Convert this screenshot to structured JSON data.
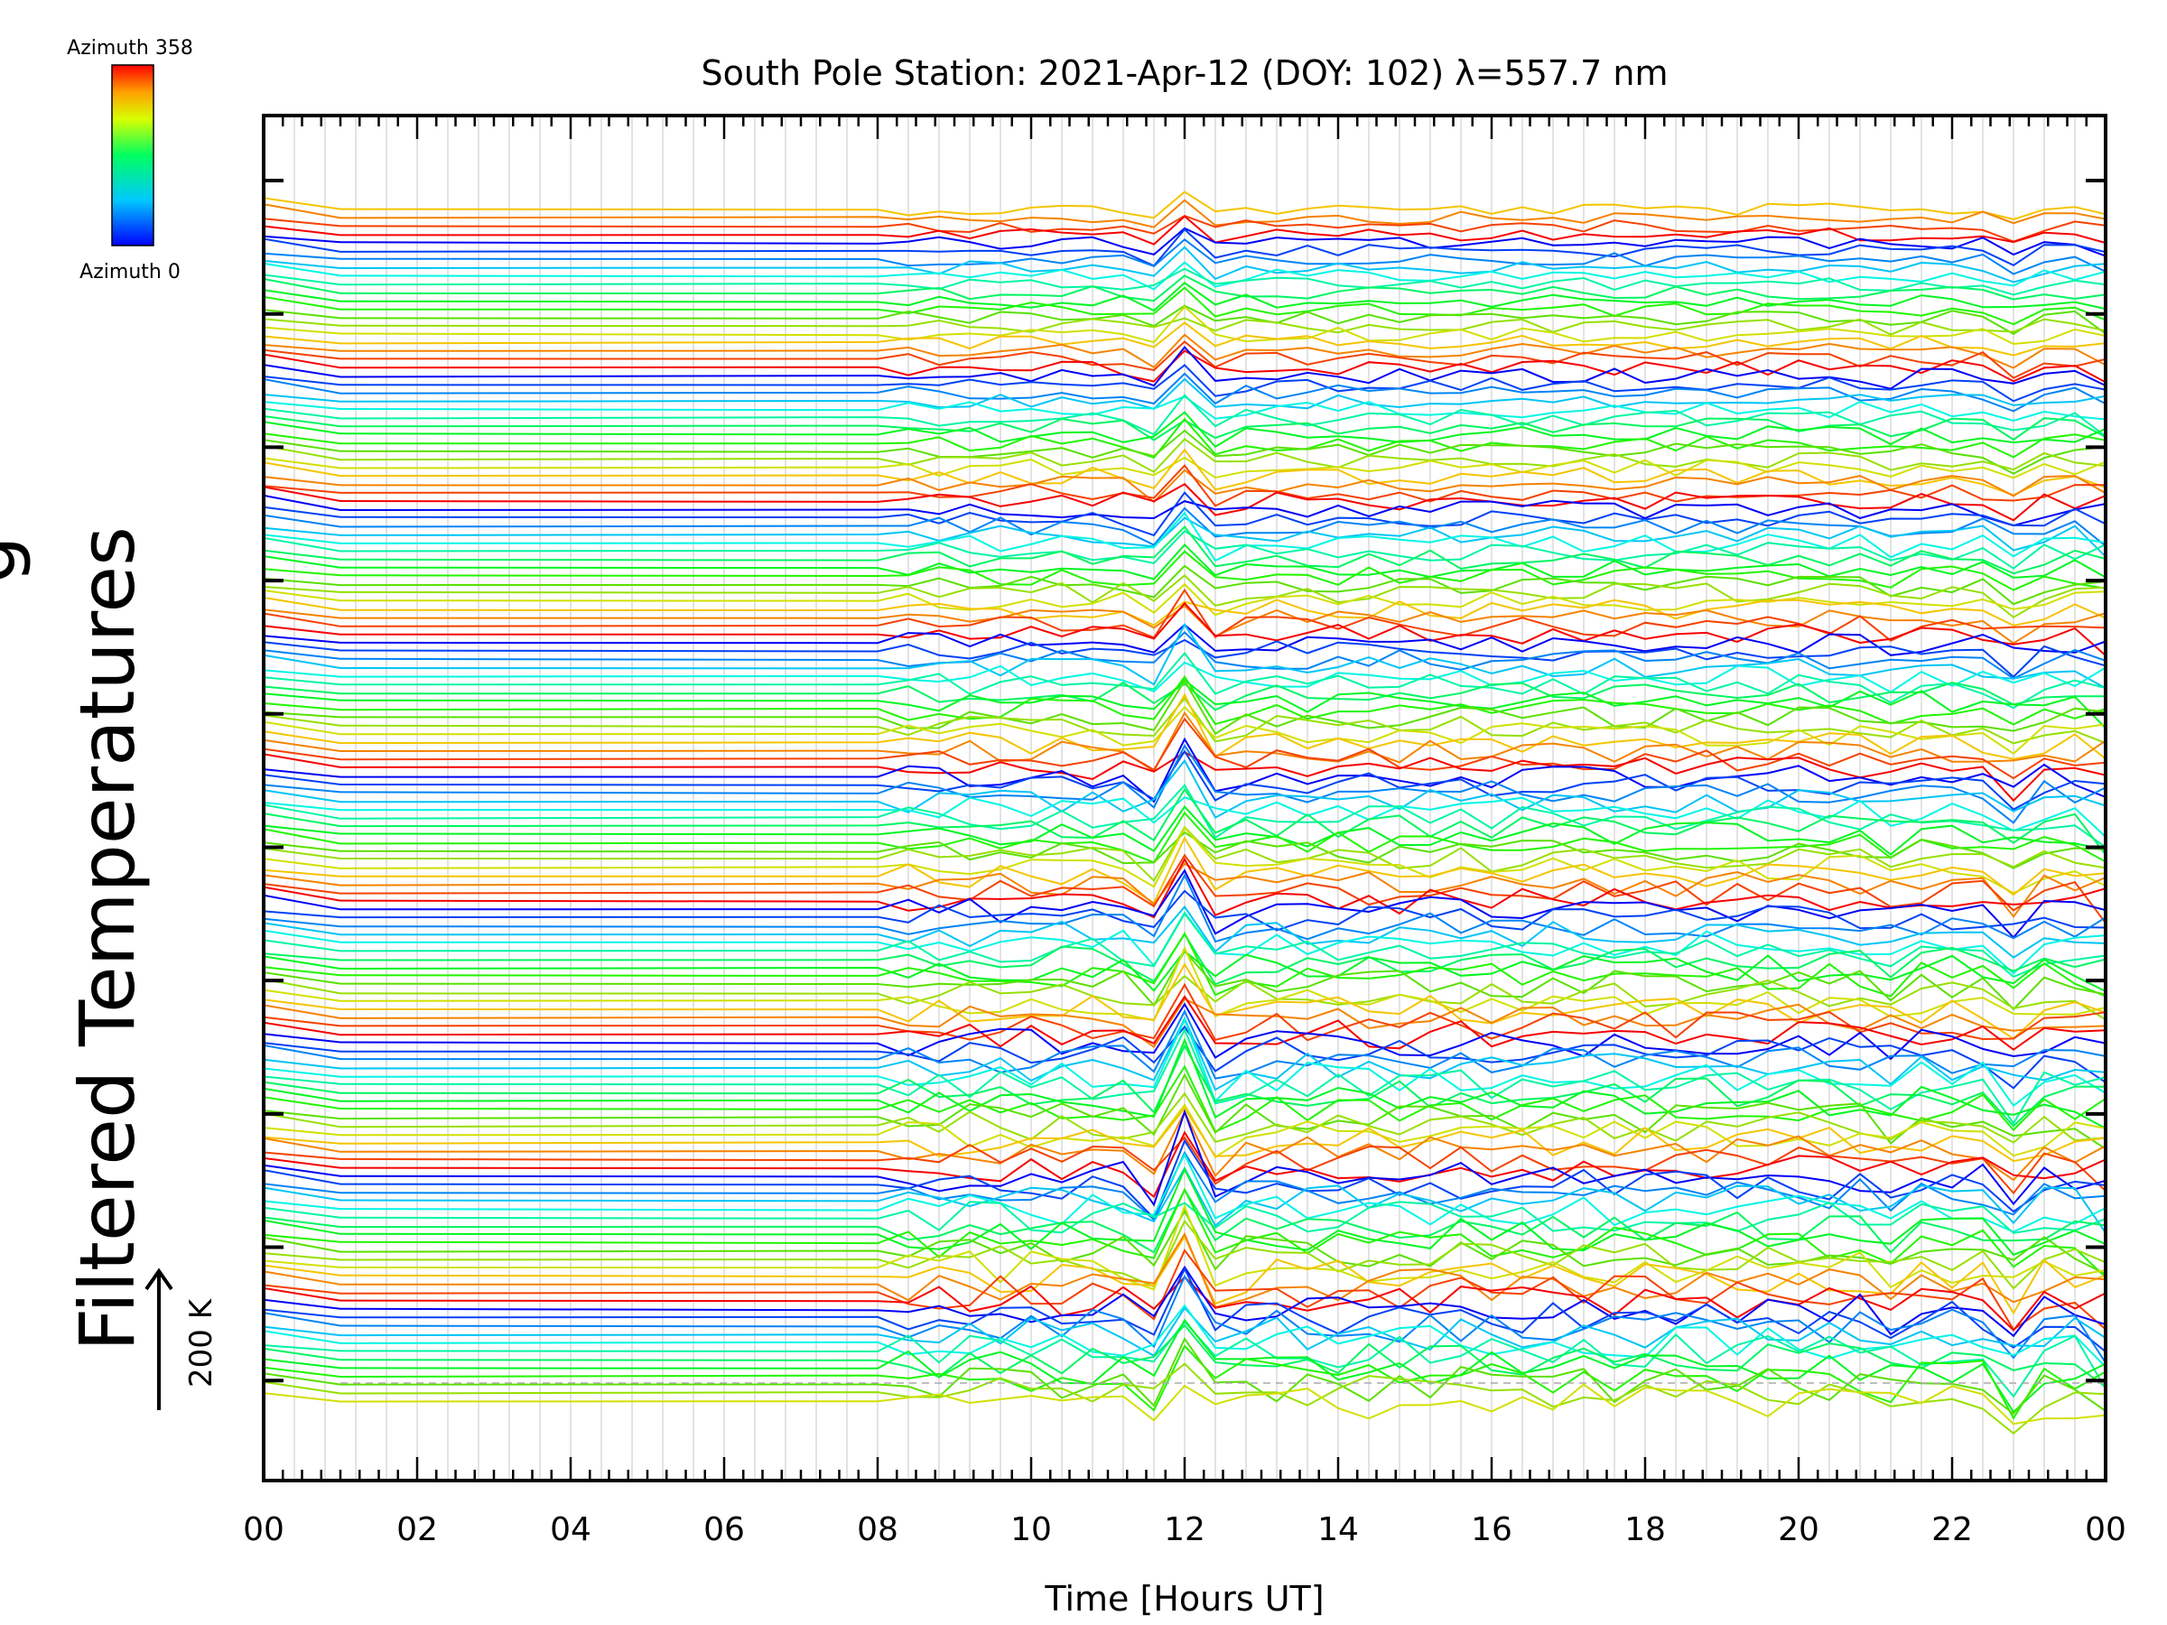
{
  "chart_data": {
    "type": "line",
    "title": "South Pole Station: 2021-Apr-12 (DOY: 102) λ=557.7 nm",
    "xlabel": "Time [Hours UT]",
    "ylabel": "Filtered Temperatures",
    "ylabel_partial": "g",
    "xlim": [
      0,
      24
    ],
    "x_tick_labels": [
      "00",
      "02",
      "04",
      "06",
      "08",
      "10",
      "12",
      "14",
      "16",
      "18",
      "20",
      "22",
      "00"
    ],
    "scale_bar": {
      "label": "200 K",
      "value_k": 200
    },
    "colorbar": {
      "top_label": "Azimuth 358",
      "bottom_label": "Azimuth 0",
      "min": 0,
      "max": 358
    },
    "grid": true,
    "n_traces": 144,
    "n_groups": 9,
    "traces_per_group": 16,
    "sample_times_hours": [
      0.0,
      1.0,
      8.0,
      8.4,
      8.8,
      9.2,
      9.6,
      10.0,
      10.4,
      10.8,
      11.2,
      11.6,
      12.0,
      12.4,
      12.8,
      13.2,
      13.6,
      14.0,
      14.4,
      14.8,
      15.2,
      15.6,
      16.0,
      16.4,
      16.8,
      17.2,
      17.6,
      18.0,
      18.4,
      18.8,
      19.2,
      19.6,
      20.0,
      20.4,
      20.8,
      21.2,
      21.6,
      22.0,
      22.4,
      22.8,
      23.2,
      23.6,
      24.0
    ]
  }
}
